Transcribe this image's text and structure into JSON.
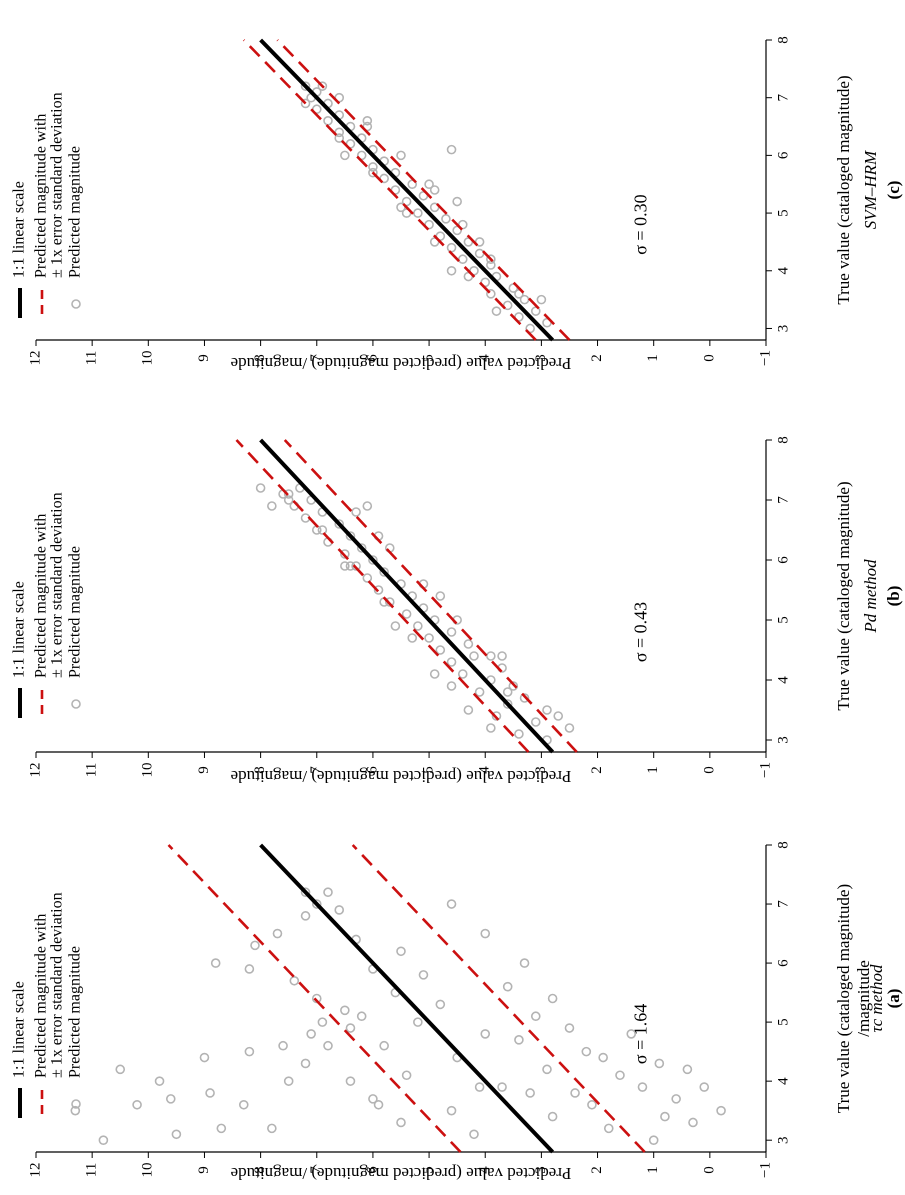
{
  "chart_data": [
    {
      "panel": "(a)",
      "type": "scatter",
      "xlabel": "True value (cataloged magnitude)",
      "xlabel2": "/magnitude",
      "ylabel": "Predicted value (predicted magnitude) /magnitude",
      "method_label": "τc method",
      "sigma_label": "σ = 1.64",
      "sigma": 1.64,
      "xlim": [
        2.8,
        8
      ],
      "ylim": [
        -1,
        12
      ],
      "x_ticks": [
        "3",
        "4",
        "5",
        "6",
        "7",
        "8"
      ],
      "y_ticks": [
        "−1",
        "0",
        "1",
        "2",
        "3",
        "4",
        "5",
        "6",
        "7",
        "8",
        "9",
        "10",
        "11",
        "12"
      ],
      "legend": {
        "items": [
          "1:1 linear scale",
          "Predicted magnitude with",
          "± 1x error standard deviation",
          "Predicted magnitude"
        ],
        "placement": "top-left"
      },
      "series": [
        {
          "name": "1:1 linear scale",
          "kind": "line",
          "x": [
            2.8,
            8
          ],
          "y": [
            2.8,
            8
          ]
        },
        {
          "name": "Predicted magnitude with ± 1x error standard deviation (upper)",
          "kind": "dashed",
          "x": [
            2.8,
            8
          ],
          "y": [
            4.44,
            9.64
          ]
        },
        {
          "name": "Predicted magnitude with ± 1x error standard deviation (lower)",
          "kind": "dashed",
          "x": [
            2.8,
            8
          ],
          "y": [
            1.16,
            6.36
          ]
        },
        {
          "name": "Predicted magnitude",
          "kind": "points",
          "x": [
            3.0,
            3.1,
            3.2,
            3.5,
            3.6,
            3.7,
            3.8,
            4.0,
            4.2,
            4.4,
            4.5,
            4.6,
            4.8,
            5.0,
            5.2,
            3.2,
            3.6,
            4.0,
            4.3,
            4.6,
            4.9,
            5.1,
            5.4,
            5.7,
            5.9,
            6.0,
            6.3,
            6.5,
            6.8,
            7.0,
            7.2,
            3.3,
            3.7,
            4.1,
            4.6,
            5.0,
            5.5,
            5.9,
            6.4,
            6.9,
            7.2,
            3.1,
            3.5,
            3.9,
            4.4,
            4.8,
            5.3,
            5.8,
            6.2,
            3.4,
            3.8,
            4.2,
            4.7,
            5.1,
            5.6,
            3.2,
            3.6,
            4.1,
            4.5,
            4.9,
            5.4,
            6.0,
            6.5,
            7.0,
            3.0,
            3.4,
            3.9,
            4.3,
            4.8,
            3.3,
            3.7,
            4.2,
            3.5,
            3.9,
            3.8,
            4.4,
            3.6,
            4.0,
            3.9
          ],
          "y": [
            10.8,
            9.5,
            8.7,
            11.3,
            10.2,
            9.6,
            8.9,
            9.8,
            10.5,
            9.0,
            8.2,
            7.6,
            7.1,
            6.9,
            6.5,
            7.8,
            8.3,
            7.5,
            7.2,
            6.8,
            6.4,
            6.2,
            7.0,
            7.4,
            8.2,
            8.8,
            8.1,
            7.7,
            7.2,
            7.0,
            7.2,
            5.5,
            6.0,
            5.4,
            5.8,
            5.2,
            5.6,
            6.0,
            6.3,
            6.6,
            6.8,
            4.2,
            4.6,
            4.1,
            4.5,
            4.0,
            4.8,
            5.1,
            5.5,
            2.8,
            3.2,
            2.9,
            3.4,
            3.1,
            3.6,
            1.8,
            2.1,
            1.6,
            2.2,
            2.5,
            2.8,
            3.3,
            4.0,
            4.6,
            1.0,
            0.8,
            1.2,
            0.9,
            1.4,
            0.3,
            0.6,
            0.4,
            -0.2,
            0.1,
            2.4,
            1.9,
            5.9,
            6.4,
            3.7
          ]
        }
      ]
    },
    {
      "panel": "(b)",
      "type": "scatter",
      "xlabel": "True value (cataloged magnitude)",
      "ylabel": "Predicted value (predicted magnitude) /magnitude",
      "method_label": "Pd method",
      "sigma_label": "σ = 0.43",
      "sigma": 0.43,
      "xlim": [
        2.8,
        8
      ],
      "ylim": [
        -1,
        12
      ],
      "x_ticks": [
        "3",
        "4",
        "5",
        "6",
        "7",
        "8"
      ],
      "y_ticks": [
        "−1",
        "0",
        "1",
        "2",
        "3",
        "4",
        "5",
        "6",
        "7",
        "8",
        "9",
        "10",
        "11",
        "12"
      ],
      "legend": {
        "items": [
          "1:1 linear scale",
          "Predicted magnitude with",
          "± 1x error standard deviation",
          "Predicted magnitude"
        ],
        "placement": "top-left"
      },
      "series": [
        {
          "name": "1:1 linear scale",
          "kind": "line",
          "x": [
            2.8,
            8
          ],
          "y": [
            2.8,
            8
          ]
        },
        {
          "name": "Predicted magnitude with ± 1x error standard deviation (upper)",
          "kind": "dashed",
          "x": [
            2.8,
            8
          ],
          "y": [
            3.23,
            8.43
          ]
        },
        {
          "name": "Predicted magnitude with ± 1x error standard deviation (lower)",
          "kind": "dashed",
          "x": [
            2.8,
            8
          ],
          "y": [
            2.37,
            7.57
          ]
        },
        {
          "name": "Predicted magnitude",
          "kind": "points",
          "x": [
            3.0,
            3.1,
            3.2,
            3.3,
            3.4,
            3.5,
            3.6,
            3.7,
            3.8,
            3.9,
            4.0,
            4.1,
            4.2,
            4.3,
            4.4,
            4.5,
            4.6,
            4.7,
            4.8,
            4.9,
            5.0,
            5.1,
            5.2,
            5.3,
            5.4,
            5.5,
            5.6,
            5.7,
            5.8,
            5.9,
            6.0,
            6.1,
            6.2,
            6.3,
            6.4,
            6.5,
            6.6,
            6.7,
            6.8,
            6.9,
            7.0,
            7.1,
            7.2,
            3.2,
            3.5,
            3.8,
            4.1,
            4.4,
            4.7,
            5.0,
            5.3,
            5.6,
            5.9,
            6.2,
            6.5,
            6.8,
            7.1,
            3.4,
            3.9,
            4.4,
            4.9,
            5.4,
            5.9,
            6.4,
            6.9,
            7.2,
            6.9,
            7.0
          ],
          "y": [
            2.9,
            3.4,
            2.5,
            3.1,
            3.8,
            2.9,
            3.6,
            3.3,
            4.1,
            3.5,
            3.9,
            4.4,
            3.7,
            4.6,
            4.2,
            4.8,
            4.3,
            5.0,
            4.6,
            5.2,
            4.9,
            5.4,
            5.1,
            5.7,
            5.3,
            5.9,
            5.5,
            6.1,
            5.8,
            6.3,
            6.0,
            6.5,
            6.2,
            6.8,
            6.4,
            7.0,
            6.6,
            7.2,
            6.9,
            7.4,
            7.1,
            7.6,
            7.3,
            3.9,
            4.3,
            3.6,
            4.9,
            3.9,
            5.3,
            4.5,
            5.8,
            5.1,
            6.4,
            5.7,
            6.9,
            6.3,
            7.5,
            2.7,
            4.6,
            3.7,
            5.6,
            4.8,
            6.5,
            5.9,
            6.1,
            8.0,
            7.8,
            7.5
          ]
        }
      ]
    },
    {
      "panel": "(c)",
      "type": "scatter",
      "xlabel": "True value (cataloged magnitude)",
      "ylabel": "Predicted value (predicted magnitude) /magnitude",
      "method_label": "SVM–HRM",
      "sigma_label": "σ = 0.30",
      "sigma": 0.3,
      "xlim": [
        2.8,
        8
      ],
      "ylim": [
        -1,
        12
      ],
      "x_ticks": [
        "3",
        "4",
        "5",
        "6",
        "7",
        "8"
      ],
      "y_ticks": [
        "−1",
        "0",
        "1",
        "2",
        "3",
        "4",
        "5",
        "6",
        "7",
        "8",
        "9",
        "10",
        "11",
        "12"
      ],
      "legend": {
        "items": [
          "1:1 linear scale",
          "Predicted magnitude with",
          "± 1x error standard deviation",
          "Predicted magnitude"
        ],
        "placement": "top-left"
      },
      "series": [
        {
          "name": "1:1 linear scale",
          "kind": "line",
          "x": [
            2.8,
            8
          ],
          "y": [
            2.8,
            8
          ]
        },
        {
          "name": "Predicted magnitude with ± 1x error standard deviation (upper)",
          "kind": "dashed",
          "x": [
            2.8,
            8
          ],
          "y": [
            3.1,
            8.3
          ]
        },
        {
          "name": "Predicted magnitude with ± 1x error standard deviation (lower)",
          "kind": "dashed",
          "x": [
            2.8,
            8
          ],
          "y": [
            2.5,
            7.7
          ]
        },
        {
          "name": "Predicted magnitude",
          "kind": "points",
          "x": [
            3.0,
            3.1,
            3.2,
            3.3,
            3.4,
            3.5,
            3.6,
            3.7,
            3.8,
            3.9,
            4.0,
            4.1,
            4.2,
            4.3,
            4.4,
            4.5,
            4.6,
            4.7,
            4.8,
            4.9,
            5.0,
            5.1,
            5.2,
            5.3,
            5.4,
            5.5,
            5.6,
            5.7,
            5.8,
            5.9,
            6.0,
            6.1,
            6.2,
            6.3,
            6.4,
            6.5,
            6.6,
            6.7,
            6.8,
            6.9,
            7.0,
            7.1,
            7.2,
            3.3,
            3.6,
            3.9,
            4.2,
            4.5,
            4.8,
            5.1,
            5.4,
            5.7,
            6.0,
            6.3,
            6.6,
            6.9,
            7.2,
            3.5,
            4.0,
            4.5,
            5.0,
            5.5,
            6.0,
            6.5,
            7.0,
            6.1,
            5.2
          ],
          "y": [
            3.2,
            2.9,
            3.4,
            3.1,
            3.6,
            3.3,
            3.9,
            3.5,
            4.0,
            3.8,
            4.2,
            3.9,
            4.4,
            4.1,
            4.6,
            4.3,
            4.8,
            4.5,
            5.0,
            4.7,
            5.2,
            4.9,
            5.4,
            5.1,
            5.6,
            5.3,
            5.8,
            5.6,
            6.0,
            5.8,
            6.2,
            6.0,
            6.4,
            6.2,
            6.6,
            6.4,
            6.8,
            6.6,
            7.0,
            6.8,
            7.1,
            7.0,
            7.2,
            3.8,
            3.4,
            4.3,
            3.9,
            4.9,
            4.4,
            5.5,
            4.9,
            6.0,
            5.5,
            6.6,
            6.1,
            7.2,
            6.9,
            3.0,
            4.6,
            4.1,
            5.4,
            5.0,
            6.5,
            6.1,
            6.6,
            4.6,
            4.5
          ]
        }
      ]
    }
  ],
  "colors": {
    "scatter_point": "#b3b3b3",
    "one_to_one_line": "#000000",
    "error_band_line": "#cc1010",
    "axis": "#000000"
  }
}
